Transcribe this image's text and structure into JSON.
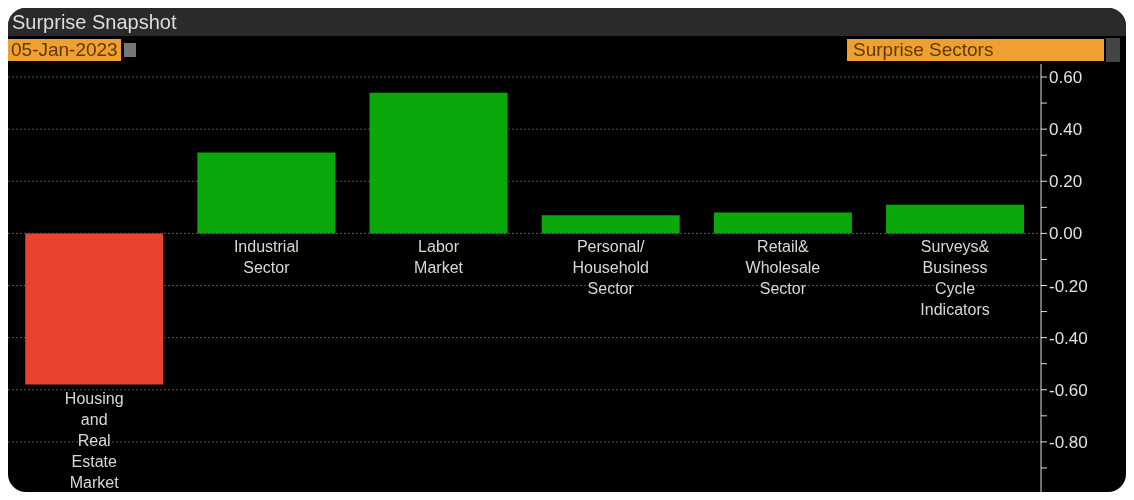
{
  "chart_data": {
    "type": "bar",
    "title": "Surprise Snapshot",
    "subtitle": "05-Jan-2023",
    "annotations": [
      "Surprise Sectors"
    ],
    "categories": [
      "Housing\nand\nReal\nEstate\nMarket",
      "Industrial\nSector",
      "Labor\nMarket",
      "Personal/\nHousehold\nSector",
      "Retail&\nWholesale\nSector",
      "Surveys&\nBusiness\nCycle\nIndicators"
    ],
    "values": [
      -0.58,
      0.31,
      0.54,
      0.07,
      0.08,
      0.11
    ],
    "colors": [
      "#e8432f",
      "#0aa80a",
      "#0aa80a",
      "#0aa80a",
      "#0aa80a",
      "#0aa80a"
    ],
    "ylim": [
      -1.0,
      0.65
    ],
    "yticks": [
      {
        "value": 0.6,
        "label": "0.60"
      },
      {
        "value": 0.5,
        "label": null
      },
      {
        "value": 0.4,
        "label": "0.40"
      },
      {
        "value": 0.3,
        "label": null
      },
      {
        "value": 0.2,
        "label": "0.20"
      },
      {
        "value": 0.1,
        "label": null
      },
      {
        "value": 0,
        "label": "0.00"
      },
      {
        "value": -0.1,
        "label": null
      },
      {
        "value": -0.2,
        "label": "-0.20"
      },
      {
        "value": -0.3,
        "label": null
      },
      {
        "value": -0.4,
        "label": "-0.40"
      },
      {
        "value": -0.5,
        "label": null
      },
      {
        "value": -0.6,
        "label": "-0.60"
      },
      {
        "value": -0.7,
        "label": null
      },
      {
        "value": -0.8,
        "label": "-0.80"
      },
      {
        "value": -0.9,
        "label": null
      }
    ],
    "grid": "y"
  }
}
